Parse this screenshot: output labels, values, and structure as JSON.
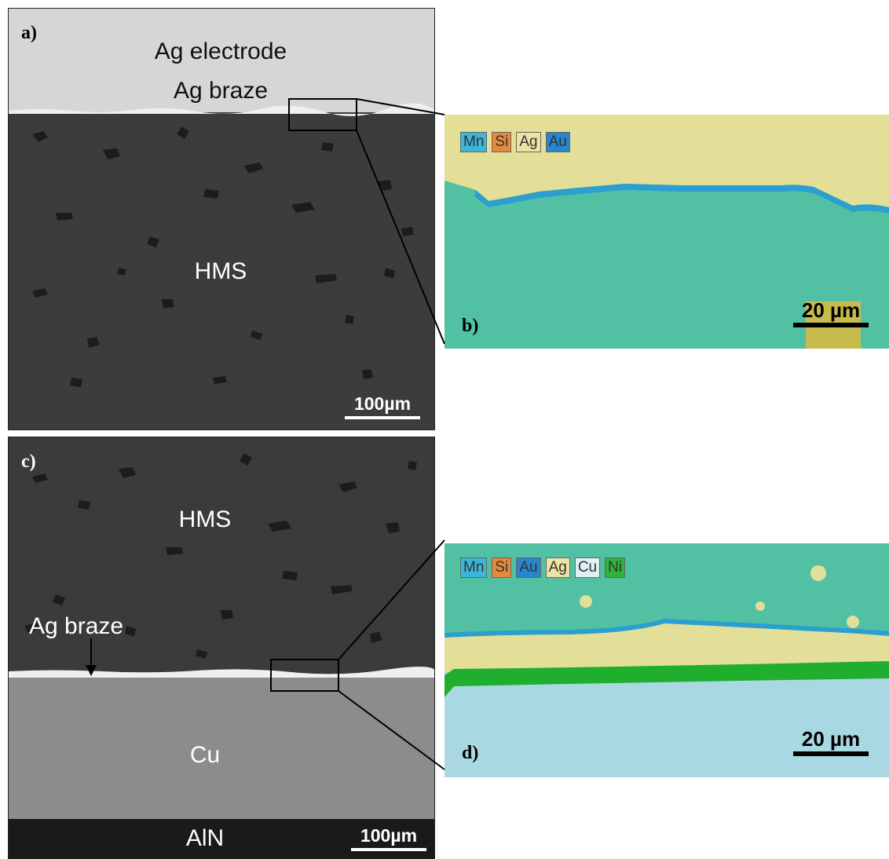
{
  "panels": {
    "a": {
      "label": "a)",
      "ag_electrode": "Ag electrode",
      "ag_braze": "Ag braze",
      "hms": "HMS",
      "scale": "100µm"
    },
    "b": {
      "label": "b)",
      "legend": [
        {
          "text": "Mn",
          "color": "#3cb6d8"
        },
        {
          "text": "Si",
          "color": "#e8883a"
        },
        {
          "text": "Ag",
          "color": "#efe2a6"
        },
        {
          "text": "Au",
          "color": "#2a86cc"
        }
      ],
      "scale": "20 µm"
    },
    "c": {
      "label": "c)",
      "hms": "HMS",
      "ag_braze": "Ag braze",
      "cu": "Cu",
      "aln": "AlN",
      "scale": "100µm"
    },
    "d": {
      "label": "d)",
      "legend": [
        {
          "text": "Mn",
          "color": "#3cb6d8"
        },
        {
          "text": "Si",
          "color": "#e8883a"
        },
        {
          "text": "Au",
          "color": "#2a86cc"
        },
        {
          "text": "Ag",
          "color": "#efe2a6"
        },
        {
          "text": "Cu",
          "color": "#dff1f5"
        },
        {
          "text": "Ni",
          "color": "#2fb33a"
        }
      ],
      "scale": "20 µm"
    }
  },
  "colors": {
    "ag_layer": "#d9d9d9",
    "hms_sem": "#3d3d3d",
    "cu_sem": "#8c8c8c",
    "aln_sem": "#1a1a1a",
    "eds_hms": "#52c1a3",
    "eds_ag": "#e3de98",
    "eds_cu": "#a9d8e3",
    "eds_ni": "#1fae2e"
  }
}
